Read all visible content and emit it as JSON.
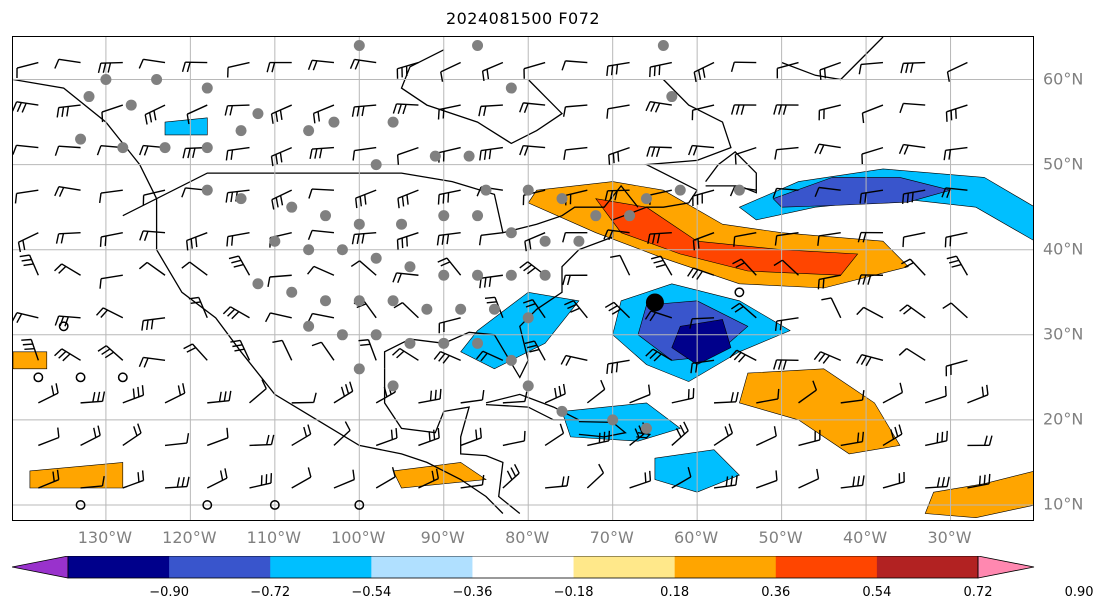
{
  "title": "2024081500 F072",
  "map": {
    "extent": {
      "lon": [
        -141,
        -20
      ],
      "lat": [
        8,
        65
      ]
    },
    "gridlines": true,
    "lat_labels": [
      {
        "lat": 60,
        "text": "60°N"
      },
      {
        "lat": 50,
        "text": "50°N"
      },
      {
        "lat": 40,
        "text": "40°N"
      },
      {
        "lat": 30,
        "text": "30°N"
      },
      {
        "lat": 20,
        "text": "20°N"
      },
      {
        "lat": 10,
        "text": "10°N"
      }
    ],
    "lon_labels": [
      {
        "lon": -130,
        "text": "130°W"
      },
      {
        "lon": -120,
        "text": "120°W"
      },
      {
        "lon": -110,
        "text": "110°W"
      },
      {
        "lon": -100,
        "text": "100°W"
      },
      {
        "lon": -90,
        "text": "90°W"
      },
      {
        "lon": -80,
        "text": "80°W"
      },
      {
        "lon": -70,
        "text": "70°W"
      },
      {
        "lon": -60,
        "text": "60°W"
      },
      {
        "lon": -50,
        "text": "50°W"
      },
      {
        "lon": -40,
        "text": "40°W"
      },
      {
        "lon": -30,
        "text": "30°W"
      }
    ],
    "marker": {
      "lon": -65,
      "lat": 33.8,
      "color": "#000000"
    }
  },
  "colorbar": {
    "colors": [
      "#9932cc",
      "#00008b",
      "#3955cc",
      "#00bfff",
      "#b0e0ff",
      "#ffffff",
      "#ffe88a",
      "#ffa500",
      "#ff4500",
      "#b22222",
      "#ff88b0"
    ],
    "labels": [
      "−0.90",
      "−0.72",
      "−0.54",
      "−0.36",
      "−0.18",
      "0.18",
      "0.36",
      "0.54",
      "0.72",
      "0.90"
    ]
  },
  "contours": [
    {
      "name": "north-atlantic-blue-outer",
      "color": "#00bfff",
      "pts": [
        [
          -55,
          45
        ],
        [
          -48,
          48
        ],
        [
          -38,
          49.5
        ],
        [
          -26,
          48.5
        ],
        [
          -20,
          45
        ],
        [
          -20,
          41
        ],
        [
          -27,
          45
        ],
        [
          -36,
          46
        ],
        [
          -46,
          45
        ],
        [
          -53,
          43.5
        ]
      ]
    },
    {
      "name": "north-atlantic-blue-mid",
      "color": "#3955cc",
      "pts": [
        [
          -51,
          46
        ],
        [
          -44,
          48.5
        ],
        [
          -36,
          48.5
        ],
        [
          -30,
          47
        ],
        [
          -35,
          45.6
        ],
        [
          -44,
          45.2
        ],
        [
          -50,
          45
        ]
      ]
    },
    {
      "name": "atlantic-orange-band",
      "color": "#ffa500",
      "pts": [
        [
          -79,
          47
        ],
        [
          -70,
          48
        ],
        [
          -64,
          47
        ],
        [
          -57,
          43
        ],
        [
          -50,
          42
        ],
        [
          -38,
          41
        ],
        [
          -35,
          38
        ],
        [
          -45,
          35.5
        ],
        [
          -55,
          36
        ],
        [
          -64,
          39
        ],
        [
          -72,
          42
        ],
        [
          -80,
          45.5
        ]
      ]
    },
    {
      "name": "atlantic-red-band",
      "color": "#ff4500",
      "pts": [
        [
          -72,
          46
        ],
        [
          -66,
          45
        ],
        [
          -60,
          41
        ],
        [
          -50,
          40
        ],
        [
          -41,
          39.5
        ],
        [
          -43,
          37
        ],
        [
          -54,
          37.5
        ],
        [
          -62,
          39.5
        ],
        [
          -69,
          42
        ]
      ]
    },
    {
      "name": "atlantic-blue-low-outer",
      "color": "#00bfff",
      "pts": [
        [
          -69,
          34
        ],
        [
          -63,
          36
        ],
        [
          -55,
          34
        ],
        [
          -49,
          30.5
        ],
        [
          -55,
          28
        ],
        [
          -61,
          24.5
        ],
        [
          -66,
          26.5
        ],
        [
          -70,
          30
        ]
      ]
    },
    {
      "name": "atlantic-blue-low-mid",
      "color": "#3955cc",
      "pts": [
        [
          -66,
          33.5
        ],
        [
          -60,
          34
        ],
        [
          -54,
          31
        ],
        [
          -58,
          27.5
        ],
        [
          -63,
          27
        ],
        [
          -67,
          30
        ]
      ]
    },
    {
      "name": "atlantic-blue-low-core",
      "color": "#00008b",
      "pts": [
        [
          -62,
          31
        ],
        [
          -57,
          31.8
        ],
        [
          -56,
          28.5
        ],
        [
          -60,
          26.5
        ],
        [
          -63,
          28.5
        ]
      ]
    },
    {
      "name": "gulf-coast-blue",
      "color": "#00bfff",
      "pts": [
        [
          -86,
          30.5
        ],
        [
          -80,
          35
        ],
        [
          -74,
          34
        ],
        [
          -78,
          29
        ],
        [
          -84,
          26
        ],
        [
          -88,
          28
        ]
      ]
    },
    {
      "name": "caribbean-blue",
      "color": "#00bfff",
      "pts": [
        [
          -76,
          21
        ],
        [
          -66,
          22
        ],
        [
          -62,
          19
        ],
        [
          -67,
          17.5
        ],
        [
          -75,
          18
        ]
      ]
    },
    {
      "name": "lesser-antilles-blue",
      "color": "#00bfff",
      "pts": [
        [
          -65,
          15.5
        ],
        [
          -58,
          16.5
        ],
        [
          -55,
          13.5
        ],
        [
          -60,
          11.5
        ],
        [
          -65,
          13
        ]
      ]
    },
    {
      "name": "tropical-orange-east",
      "color": "#ffa500",
      "pts": [
        [
          -54,
          25.5
        ],
        [
          -45,
          26
        ],
        [
          -39,
          22
        ],
        [
          -36,
          17
        ],
        [
          -42,
          16
        ],
        [
          -48,
          20
        ],
        [
          -55,
          22
        ]
      ]
    },
    {
      "name": "tropical-orange-far-east",
      "color": "#ffa500",
      "pts": [
        [
          -32,
          11.5
        ],
        [
          -26,
          12.5
        ],
        [
          -20,
          14
        ],
        [
          -20,
          10
        ],
        [
          -27,
          8.5
        ],
        [
          -33,
          9
        ]
      ]
    },
    {
      "name": "west-orange-blob",
      "color": "#ffa500",
      "pts": [
        [
          -141,
          28
        ],
        [
          -137,
          28
        ],
        [
          -137,
          26
        ],
        [
          -141,
          26
        ]
      ]
    },
    {
      "name": "pacific-orange-small",
      "color": "#ffa500",
      "pts": [
        [
          -139,
          14
        ],
        [
          -128,
          15
        ],
        [
          -128,
          12
        ],
        [
          -139,
          12
        ]
      ]
    },
    {
      "name": "mexico-orange-south",
      "color": "#ffa500",
      "pts": [
        [
          -96,
          14
        ],
        [
          -88,
          15
        ],
        [
          -85,
          13
        ],
        [
          -95,
          12
        ]
      ]
    },
    {
      "name": "alaska-blue",
      "color": "#00bfff",
      "pts": [
        [
          -123,
          55
        ],
        [
          -118,
          55.5
        ],
        [
          -118,
          53.5
        ],
        [
          -123,
          53.5
        ]
      ]
    }
  ],
  "dots": [
    [
      -130,
      60
    ],
    [
      -124,
      60
    ],
    [
      -118,
      59
    ],
    [
      -132,
      58
    ],
    [
      -127,
      57
    ],
    [
      -133,
      53
    ],
    [
      -128,
      52
    ],
    [
      -123,
      52
    ],
    [
      -118,
      52
    ],
    [
      -112,
      56
    ],
    [
      -114,
      54
    ],
    [
      -106,
      54
    ],
    [
      -103,
      55
    ],
    [
      -96,
      55
    ],
    [
      -98,
      50
    ],
    [
      -91,
      51
    ],
    [
      -87,
      51
    ],
    [
      -85,
      47
    ],
    [
      -80,
      47
    ],
    [
      -76,
      46
    ],
    [
      -72,
      44
    ],
    [
      -68,
      44
    ],
    [
      -66,
      46
    ],
    [
      -62,
      47
    ],
    [
      -55,
      47
    ],
    [
      -118,
      47
    ],
    [
      -114,
      46
    ],
    [
      -108,
      45
    ],
    [
      -104,
      44
    ],
    [
      -100,
      43
    ],
    [
      -95,
      43
    ],
    [
      -90,
      44
    ],
    [
      -86,
      44
    ],
    [
      -82,
      42
    ],
    [
      -78,
      41
    ],
    [
      -74,
      41
    ],
    [
      -110,
      41
    ],
    [
      -106,
      40
    ],
    [
      -102,
      40
    ],
    [
      -98,
      39
    ],
    [
      -94,
      38
    ],
    [
      -90,
      37
    ],
    [
      -86,
      37
    ],
    [
      -82,
      37
    ],
    [
      -78,
      37
    ],
    [
      -112,
      36
    ],
    [
      -108,
      35
    ],
    [
      -104,
      34
    ],
    [
      -100,
      34
    ],
    [
      -96,
      34
    ],
    [
      -92,
      33
    ],
    [
      -88,
      33
    ],
    [
      -84,
      33
    ],
    [
      -80,
      32
    ],
    [
      -106,
      31
    ],
    [
      -102,
      30
    ],
    [
      -98,
      30
    ],
    [
      -94,
      29
    ],
    [
      -90,
      29
    ],
    [
      -86,
      29
    ],
    [
      -82,
      27
    ],
    [
      -100,
      26
    ],
    [
      -96,
      24
    ],
    [
      -80,
      24
    ],
    [
      -76,
      21
    ],
    [
      -70,
      20
    ],
    [
      -66,
      19
    ],
    [
      -64,
      64
    ],
    [
      -63,
      58
    ],
    [
      -86,
      64
    ],
    [
      -100,
      64
    ],
    [
      -82,
      59
    ]
  ],
  "open_circles": [
    [
      -135,
      31
    ],
    [
      -138,
      25
    ],
    [
      -133,
      25
    ],
    [
      -128,
      25
    ],
    [
      -118,
      10
    ],
    [
      -110,
      10
    ],
    [
      -100,
      10
    ],
    [
      -133,
      10
    ],
    [
      -55,
      35
    ]
  ],
  "barbs": {
    "lon_start": -138,
    "lon_end": -24,
    "lon_step": 5,
    "lat_start": 12,
    "lat_end": 62,
    "lat_step": 5
  }
}
